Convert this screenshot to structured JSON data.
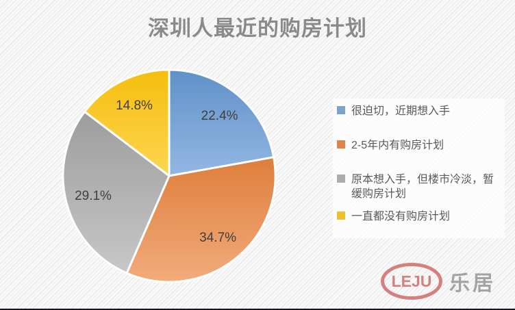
{
  "header": {
    "title": "深圳人最近的购房计划"
  },
  "chart_data": {
    "type": "pie",
    "title": "深圳人最近的购房计划",
    "categories": [
      "很迫切，近期想入手",
      "2-5年内有购房计划",
      "原本想入手，但楼市冷淡，暂缓购房计划",
      "一直都没有购房计划"
    ],
    "values": [
      22.4,
      34.7,
      29.1,
      14.8
    ],
    "data_labels": [
      "22.4%",
      "34.7%",
      "29.1%",
      "14.8%"
    ],
    "start_angle_deg": 0,
    "direction": "clockwise",
    "legend_position": "right",
    "slices": [
      {
        "label": "很迫切，近期想入手",
        "value": 22.4,
        "pct_label": "22.4%",
        "color_top": "#5F91C8",
        "color_bottom": "#93B7E3"
      },
      {
        "label": "2-5年内有购房计划",
        "value": 34.7,
        "pct_label": "34.7%",
        "color_top": "#DD7E3C",
        "color_bottom": "#F2AB7B"
      },
      {
        "label": "原本想入手，但楼市冷淡，暂缓购房计划",
        "value": 29.1,
        "pct_label": "29.1%",
        "color_top": "#9D9D9D",
        "color_bottom": "#C7C7C7"
      },
      {
        "label": "一直都没有购房计划",
        "value": 14.8,
        "pct_label": "14.8%",
        "color_top": "#F5BE0E",
        "color_bottom": "#FDD551"
      }
    ],
    "label_color": "#3F3F3F"
  },
  "legend": {
    "items": [
      {
        "label": "很迫切，近期想入手",
        "color": "#7BA4CC"
      },
      {
        "label": "2-5年内有购房计划",
        "color": "#DE8449"
      },
      {
        "label": "原本想入手，但楼市冷淡，暂缓购房计划",
        "color": "#ACACAC"
      },
      {
        "label": "一直都没有购房计划",
        "color": "#EFC02E"
      }
    ]
  },
  "logo": {
    "wordmark": "LEJU",
    "cjk_name": "乐居",
    "brand_color": "#D5807E",
    "cjk_color": "#A3A3A3"
  }
}
